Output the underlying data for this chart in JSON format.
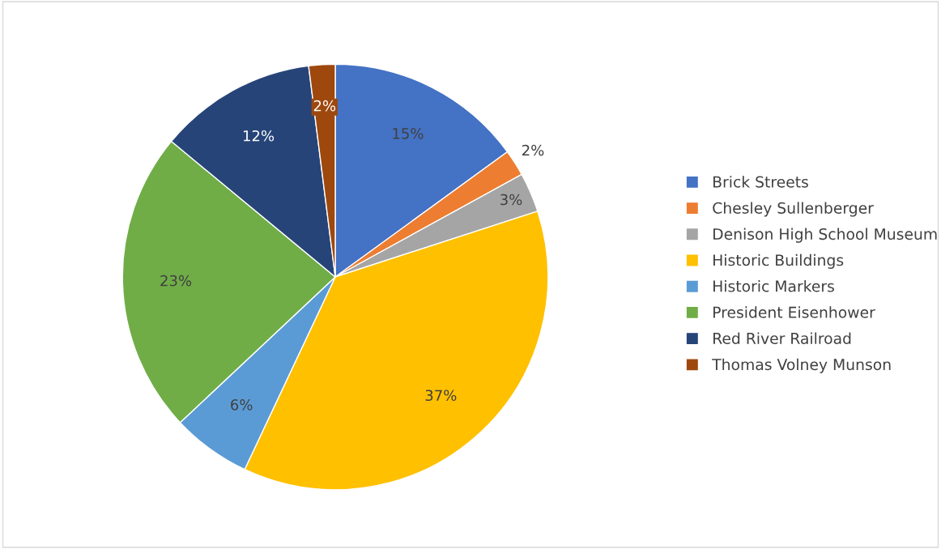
{
  "chart_data": {
    "type": "pie",
    "categories": [
      "Brick Streets",
      "Chesley Sullenberger",
      "Denison High School Museum",
      "Historic Buildings",
      "Historic Markers",
      "President Eisenhower",
      "Red River Railroad",
      "Thomas Volney Munson"
    ],
    "values": [
      15,
      2,
      3,
      37,
      6,
      23,
      12,
      2
    ],
    "colors": [
      "#4472c4",
      "#ed7d31",
      "#a5a5a5",
      "#ffc000",
      "#5b9bd5",
      "#70ad47",
      "#264478",
      "#9e480e"
    ],
    "value_labels": [
      "15%",
      "2%",
      "3%",
      "37%",
      "6%",
      "23%",
      "12%",
      "2%"
    ],
    "legend": "right"
  }
}
